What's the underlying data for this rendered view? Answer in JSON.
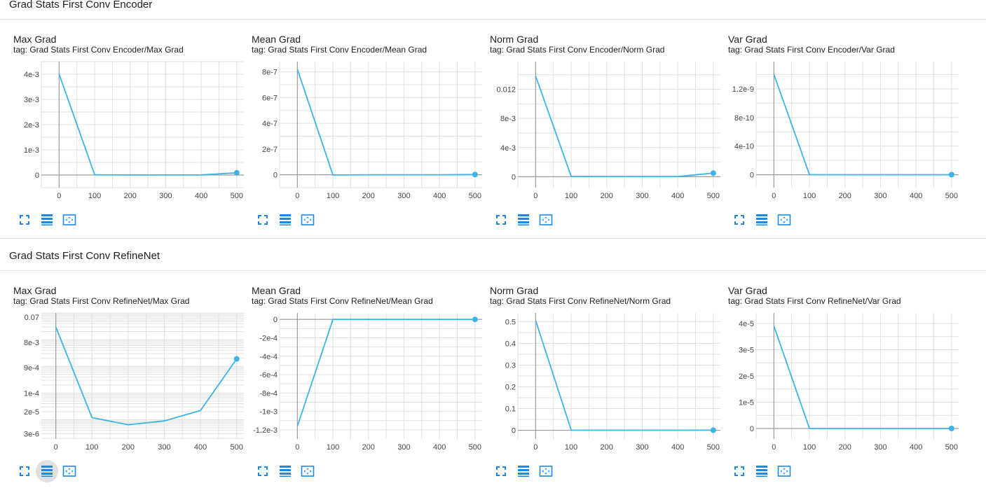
{
  "sections": [
    {
      "title": "Grad Stats First Conv Encoder",
      "cards": [
        {
          "title": "Max Grad",
          "tag": "tag: Grad Stats First Conv Encoder/Max Grad"
        },
        {
          "title": "Mean Grad",
          "tag": "tag: Grad Stats First Conv Encoder/Mean Grad"
        },
        {
          "title": "Norm Grad",
          "tag": "tag: Grad Stats First Conv Encoder/Norm Grad"
        },
        {
          "title": "Var Grad",
          "tag": "tag: Grad Stats First Conv Encoder/Var Grad"
        }
      ]
    },
    {
      "title": "Grad Stats First Conv RefineNet",
      "cards": [
        {
          "title": "Max Grad",
          "tag": "tag: Grad Stats First Conv RefineNet/Max Grad"
        },
        {
          "title": "Mean Grad",
          "tag": "tag: Grad Stats First Conv RefineNet/Mean Grad"
        },
        {
          "title": "Norm Grad",
          "tag": "tag: Grad Stats First Conv RefineNet/Norm Grad"
        },
        {
          "title": "Var Grad",
          "tag": "tag: Grad Stats First Conv RefineNet/Var Grad"
        }
      ]
    }
  ],
  "colors": {
    "line": "#3cb4e6",
    "axis": "#9e9e9e",
    "grid": "#e0e0e0",
    "tool": "#1e88e5"
  },
  "toolbar_icons": [
    "fullscreen-icon",
    "data-table-icon",
    "fit-domain-icon"
  ],
  "active_tool": {
    "section": 1,
    "card": 0,
    "tool": 1
  },
  "chart_data": [
    {
      "type": "line",
      "xlim": [
        -50,
        520
      ],
      "xticks": [
        0,
        100,
        200,
        300,
        400,
        500
      ],
      "xtick_labels": [
        "0",
        "100",
        "200",
        "300",
        "400",
        "500"
      ],
      "ylim": [
        -0.0005,
        0.0045
      ],
      "yticks": [
        0,
        0.001,
        0.002,
        0.003,
        0.004
      ],
      "ytick_labels": [
        "0",
        "1e-3",
        "2e-3",
        "3e-3",
        "4e-3"
      ],
      "log": false,
      "x": [
        0,
        100,
        200,
        300,
        400,
        500
      ],
      "y": [
        0.004,
        1e-05,
        5e-06,
        3e-06,
        5e-06,
        9e-05
      ]
    },
    {
      "type": "line",
      "xlim": [
        -50,
        520
      ],
      "xticks": [
        0,
        100,
        200,
        300,
        400,
        500
      ],
      "xtick_labels": [
        "0",
        "100",
        "200",
        "300",
        "400",
        "500"
      ],
      "ylim": [
        -1e-07,
        8.8e-07
      ],
      "yticks": [
        0,
        2e-07,
        4e-07,
        6e-07,
        8e-07
      ],
      "ytick_labels": [
        "0",
        "2e-7",
        "4e-7",
        "6e-7",
        "8e-7"
      ],
      "log": false,
      "x": [
        0,
        100,
        200,
        300,
        400,
        500
      ],
      "y": [
        8.2e-07,
        -2e-09,
        0,
        0,
        0,
        2e-09
      ]
    },
    {
      "type": "line",
      "xlim": [
        -50,
        520
      ],
      "xticks": [
        0,
        100,
        200,
        300,
        400,
        500
      ],
      "xtick_labels": [
        "0",
        "100",
        "200",
        "300",
        "400",
        "500"
      ],
      "ylim": [
        -0.0015,
        0.0158
      ],
      "yticks": [
        0,
        0.004,
        0.008,
        0.012
      ],
      "ytick_labels": [
        "0",
        "4e-3",
        "8e-3",
        "0.012"
      ],
      "log": false,
      "x": [
        0,
        100,
        200,
        300,
        400,
        500
      ],
      "y": [
        0.0138,
        5e-05,
        3e-05,
        2e-05,
        2e-05,
        0.0005
      ]
    },
    {
      "type": "line",
      "xlim": [
        -50,
        520
      ],
      "xticks": [
        0,
        100,
        200,
        300,
        400,
        500
      ],
      "xtick_labels": [
        "0",
        "100",
        "200",
        "300",
        "400",
        "500"
      ],
      "ylim": [
        -1.8e-10,
        1.58e-09
      ],
      "yticks": [
        0,
        4e-10,
        8e-10,
        1.2e-09
      ],
      "ytick_labels": [
        "0",
        "4e-10",
        "8e-10",
        "1.2e-9"
      ],
      "log": false,
      "x": [
        0,
        100,
        200,
        300,
        400,
        500
      ],
      "y": [
        1.4e-09,
        2e-12,
        1e-12,
        1e-12,
        1e-12,
        1e-12
      ]
    },
    {
      "type": "line",
      "xlim": [
        -40,
        520
      ],
      "xticks": [
        0,
        100,
        200,
        300,
        400,
        500
      ],
      "xtick_labels": [
        "0",
        "100",
        "200",
        "300",
        "400",
        "500"
      ],
      "ylim": [
        1.9e-06,
        0.1
      ],
      "yticks": [
        3e-06,
        2e-05,
        0.0001,
        0.0009,
        0.008,
        0.07
      ],
      "ytick_labels": [
        "3e-6",
        "2e-5",
        "1e-4",
        "9e-4",
        "8e-3",
        "0.07"
      ],
      "log": true,
      "x": [
        0,
        100,
        200,
        300,
        400,
        500
      ],
      "y": [
        0.03,
        1.2e-05,
        6.5e-06,
        9e-06,
        2.2e-05,
        0.0019
      ]
    },
    {
      "type": "line",
      "xlim": [
        -50,
        520
      ],
      "xticks": [
        0,
        100,
        200,
        300,
        400,
        500
      ],
      "xtick_labels": [
        "0",
        "100",
        "200",
        "300",
        "400",
        "500"
      ],
      "ylim": [
        -0.0013,
        7e-05
      ],
      "yticks": [
        0,
        -0.0002,
        -0.0004,
        -0.0006,
        -0.0008,
        -0.001,
        -0.0012
      ],
      "ytick_labels": [
        "0",
        "-2e-4",
        "-4e-4",
        "-6e-4",
        "-8e-4",
        "-1e-3",
        "-1.2e-3"
      ],
      "log": false,
      "x": [
        0,
        100,
        200,
        300,
        400,
        500
      ],
      "y": [
        -0.00116,
        0,
        0,
        0,
        0,
        0
      ]
    },
    {
      "type": "line",
      "xlim": [
        -50,
        520
      ],
      "xticks": [
        0,
        100,
        200,
        300,
        400,
        500
      ],
      "xtick_labels": [
        "0",
        "100",
        "200",
        "300",
        "400",
        "500"
      ],
      "ylim": [
        -0.04,
        0.54
      ],
      "yticks": [
        0,
        0.1,
        0.2,
        0.3,
        0.4,
        0.5
      ],
      "ytick_labels": [
        "0",
        "0.1",
        "0.2",
        "0.3",
        "0.4",
        "0.5"
      ],
      "log": false,
      "x": [
        0,
        100,
        200,
        300,
        400,
        500
      ],
      "y": [
        0.505,
        0.0005,
        0.0003,
        0.0002,
        0.0003,
        0.0005
      ]
    },
    {
      "type": "line",
      "xlim": [
        -50,
        520
      ],
      "xticks": [
        0,
        100,
        200,
        300,
        400,
        500
      ],
      "xtick_labels": [
        "0",
        "100",
        "200",
        "300",
        "400",
        "500"
      ],
      "ylim": [
        -4e-06,
        4.4e-05
      ],
      "yticks": [
        0,
        1e-05,
        2e-05,
        3e-05,
        4e-05
      ],
      "ytick_labels": [
        "0",
        "1e-5",
        "2e-5",
        "3e-5",
        "4e-5"
      ],
      "log": false,
      "x": [
        0,
        100,
        200,
        300,
        400,
        500
      ],
      "y": [
        3.9e-05,
        1e-08,
        5e-09,
        5e-09,
        5e-09,
        5e-09
      ]
    }
  ]
}
